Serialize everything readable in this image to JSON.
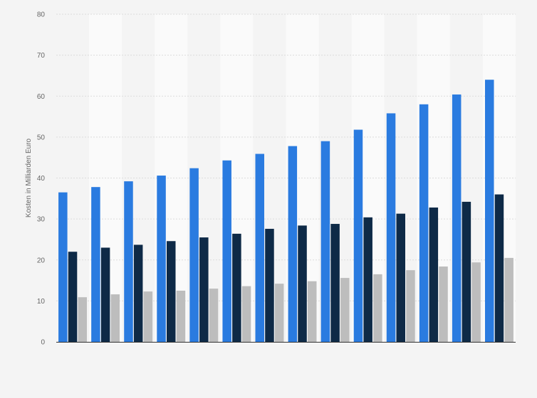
{
  "chart_data": {
    "type": "bar",
    "title": "",
    "xlabel": "",
    "ylabel": "Kosten in Milliarden Euro",
    "ylim": [
      0,
      80
    ],
    "yticks": [
      0,
      10,
      20,
      30,
      40,
      50,
      60,
      70,
      80
    ],
    "grid": true,
    "legend": "none",
    "category_count": 14,
    "series": [
      {
        "color": "#2a7be0",
        "values": [
          36.5,
          37.8,
          39.2,
          40.6,
          42.4,
          44.3,
          45.9,
          47.8,
          49.0,
          51.8,
          55.8,
          58.0,
          60.4,
          64.0
        ]
      },
      {
        "color": "#0e2a47",
        "values": [
          22.0,
          23.0,
          23.7,
          24.6,
          25.5,
          26.4,
          27.6,
          28.4,
          28.8,
          30.4,
          31.3,
          32.8,
          34.2,
          36.0
        ]
      },
      {
        "color": "#bdbdbd",
        "values": [
          10.9,
          11.6,
          12.3,
          12.5,
          13.0,
          13.6,
          14.2,
          14.8,
          15.6,
          16.5,
          17.5,
          18.4,
          19.4,
          20.5
        ]
      }
    ]
  }
}
